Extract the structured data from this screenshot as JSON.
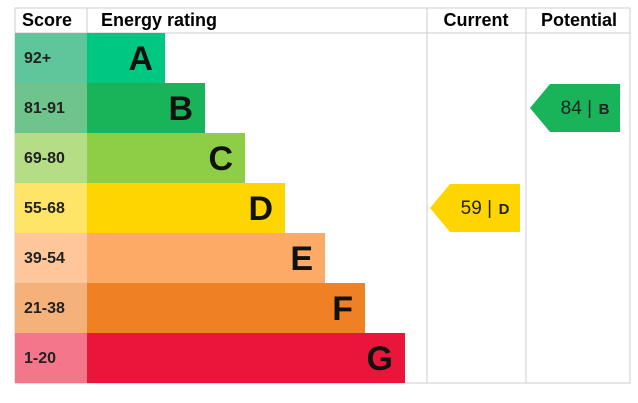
{
  "header": {
    "score": "Score",
    "rating": "Energy rating",
    "current": "Current",
    "potential": "Potential"
  },
  "bands": [
    {
      "score": "92+",
      "letter": "A",
      "color": "#00c781",
      "score_color": "#5fc59a"
    },
    {
      "score": "81-91",
      "letter": "B",
      "color": "#19b459",
      "score_color": "#6fc48c"
    },
    {
      "score": "69-80",
      "letter": "C",
      "color": "#8dce46",
      "score_color": "#b4dd86"
    },
    {
      "score": "55-68",
      "letter": "D",
      "color": "#ffd500",
      "score_color": "#ffe566"
    },
    {
      "score": "39-54",
      "letter": "E",
      "color": "#fcaa65",
      "score_color": "#fdc799"
    },
    {
      "score": "21-38",
      "letter": "F",
      "color": "#ef8023",
      "score_color": "#f5b17a"
    },
    {
      "score": "1-20",
      "letter": "G",
      "color": "#e9153b",
      "score_color": "#f3768a"
    }
  ],
  "current": {
    "value": 59,
    "separator": "|",
    "rating": "D"
  },
  "potential": {
    "value": 84,
    "separator": "|",
    "rating": "B"
  }
}
